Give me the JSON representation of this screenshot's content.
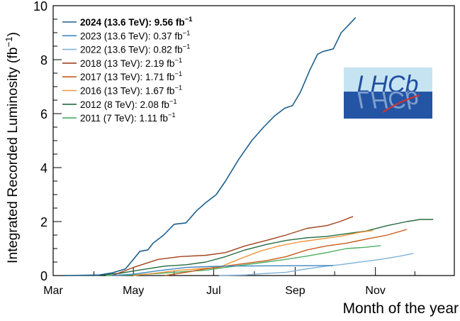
{
  "chart_data": {
    "type": "line",
    "xlabel": "Month of the year",
    "ylabel_main": "Integrated Recorded Luminosity (fb",
    "ylabel_sup": "−1",
    "ylabel_close": ")",
    "xlim": [
      "2024-03-01",
      "2024-12-31"
    ],
    "ylim": [
      0,
      10
    ],
    "x_ticks": [
      {
        "label": "Mar",
        "date": "2024-03-01"
      },
      {
        "label": "May",
        "date": "2024-05-01"
      },
      {
        "label": "Jul",
        "date": "2024-07-01"
      },
      {
        "label": "Sep",
        "date": "2024-09-01"
      },
      {
        "label": "Nov",
        "date": "2024-11-01"
      }
    ],
    "y_ticks": [
      {
        "label": "0",
        "value": 0
      },
      {
        "label": "2",
        "value": 2
      },
      {
        "label": "4",
        "value": 4
      },
      {
        "label": "6",
        "value": 6
      },
      {
        "label": "8",
        "value": 8
      },
      {
        "label": "10",
        "value": 10
      }
    ],
    "legend_position": "top-left",
    "series": [
      {
        "key": "2024",
        "name_main": "2024 (13.6 TeV): 9.56 fb",
        "name_sup": "−1",
        "bold": true,
        "color": "#1d5f8e",
        "points": [
          [
            "2024-03-10",
            0
          ],
          [
            "2024-04-05",
            0.02
          ],
          [
            "2024-04-15",
            0.1
          ],
          [
            "2024-04-25",
            0.25
          ],
          [
            "2024-05-01",
            0.6
          ],
          [
            "2024-05-06",
            0.9
          ],
          [
            "2024-05-12",
            0.95
          ],
          [
            "2024-05-16",
            1.2
          ],
          [
            "2024-05-24",
            1.5
          ],
          [
            "2024-06-01",
            1.9
          ],
          [
            "2024-06-10",
            1.95
          ],
          [
            "2024-06-18",
            2.4
          ],
          [
            "2024-06-25",
            2.7
          ],
          [
            "2024-07-03",
            3.0
          ],
          [
            "2024-07-10",
            3.5
          ],
          [
            "2024-07-20",
            4.3
          ],
          [
            "2024-07-30",
            5.0
          ],
          [
            "2024-08-08",
            5.5
          ],
          [
            "2024-08-16",
            5.9
          ],
          [
            "2024-08-24",
            6.2
          ],
          [
            "2024-08-30",
            6.3
          ],
          [
            "2024-09-05",
            6.8
          ],
          [
            "2024-09-12",
            7.6
          ],
          [
            "2024-09-18",
            8.2
          ],
          [
            "2024-09-22",
            8.3
          ],
          [
            "2024-09-30",
            8.4
          ],
          [
            "2024-10-06",
            9.0
          ],
          [
            "2024-10-12",
            9.3
          ],
          [
            "2024-10-17",
            9.56
          ]
        ]
      },
      {
        "key": "2023",
        "name_main": "2023 (13.6 TeV): 0.37 fb",
        "name_sup": "−1",
        "bold": false,
        "color": "#3b86c0",
        "points": [
          [
            "2024-04-15",
            0
          ],
          [
            "2024-05-01",
            0.05
          ],
          [
            "2024-05-20",
            0.18
          ],
          [
            "2024-06-10",
            0.3
          ],
          [
            "2024-06-25",
            0.33
          ],
          [
            "2024-07-10",
            0.35
          ],
          [
            "2024-08-15",
            0.36
          ],
          [
            "2024-09-25",
            0.37
          ],
          [
            "2024-09-30",
            0.37
          ]
        ]
      },
      {
        "key": "2022",
        "name_main": "2022 (13.6 TeV): 0.82 fb",
        "name_sup": "−1",
        "bold": false,
        "color": "#7fb2d9",
        "points": [
          [
            "2024-07-05",
            0
          ],
          [
            "2024-07-25",
            0.02
          ],
          [
            "2024-08-10",
            0.08
          ],
          [
            "2024-08-25",
            0.12
          ],
          [
            "2024-09-10",
            0.25
          ],
          [
            "2024-09-25",
            0.35
          ],
          [
            "2024-10-05",
            0.4
          ],
          [
            "2024-10-20",
            0.5
          ],
          [
            "2024-11-05",
            0.6
          ],
          [
            "2024-11-20",
            0.72
          ],
          [
            "2024-11-30",
            0.82
          ]
        ]
      },
      {
        "key": "2018",
        "name_main": "2018 (13 TeV): 2.19 fb",
        "name_sup": "−1",
        "bold": false,
        "color": "#a0421c",
        "points": [
          [
            "2024-04-15",
            0
          ],
          [
            "2024-05-01",
            0.3
          ],
          [
            "2024-05-20",
            0.6
          ],
          [
            "2024-06-05",
            0.7
          ],
          [
            "2024-06-25",
            0.75
          ],
          [
            "2024-07-10",
            0.85
          ],
          [
            "2024-07-25",
            1.1
          ],
          [
            "2024-08-10",
            1.3
          ],
          [
            "2024-08-25",
            1.5
          ],
          [
            "2024-09-10",
            1.75
          ],
          [
            "2024-09-25",
            1.85
          ],
          [
            "2024-10-05",
            2.0
          ],
          [
            "2024-10-15",
            2.19
          ]
        ]
      },
      {
        "key": "2017",
        "name_main": "2017 (13 TeV): 1.71 fb",
        "name_sup": "−1",
        "bold": false,
        "color": "#c85a19",
        "points": [
          [
            "2024-05-25",
            0
          ],
          [
            "2024-06-10",
            0.12
          ],
          [
            "2024-06-25",
            0.25
          ],
          [
            "2024-07-10",
            0.35
          ],
          [
            "2024-07-25",
            0.45
          ],
          [
            "2024-08-10",
            0.55
          ],
          [
            "2024-08-25",
            0.7
          ],
          [
            "2024-09-10",
            0.95
          ],
          [
            "2024-09-25",
            1.1
          ],
          [
            "2024-10-10",
            1.2
          ],
          [
            "2024-10-25",
            1.35
          ],
          [
            "2024-11-10",
            1.5
          ],
          [
            "2024-11-25",
            1.71
          ]
        ]
      },
      {
        "key": "2016",
        "name_main": "2016 (13 TeV): 1.67 fb",
        "name_sup": "−1",
        "bold": false,
        "color": "#f0953a",
        "points": [
          [
            "2024-05-01",
            0
          ],
          [
            "2024-05-20",
            0.1
          ],
          [
            "2024-06-05",
            0.2
          ],
          [
            "2024-06-20",
            0.25
          ],
          [
            "2024-07-05",
            0.3
          ],
          [
            "2024-07-20",
            0.6
          ],
          [
            "2024-08-05",
            0.9
          ],
          [
            "2024-08-20",
            1.1
          ],
          [
            "2024-09-05",
            1.25
          ],
          [
            "2024-09-20",
            1.35
          ],
          [
            "2024-10-05",
            1.45
          ],
          [
            "2024-10-20",
            1.6
          ],
          [
            "2024-10-30",
            1.67
          ]
        ]
      },
      {
        "key": "2012",
        "name_main": "2012 (8 TeV): 2.08 fb",
        "name_sup": "−1",
        "bold": false,
        "color": "#246b3f",
        "points": [
          [
            "2024-04-01",
            0
          ],
          [
            "2024-04-20",
            0.08
          ],
          [
            "2024-05-05",
            0.2
          ],
          [
            "2024-05-25",
            0.35
          ],
          [
            "2024-06-10",
            0.4
          ],
          [
            "2024-06-25",
            0.5
          ],
          [
            "2024-07-10",
            0.7
          ],
          [
            "2024-07-25",
            0.95
          ],
          [
            "2024-08-10",
            1.15
          ],
          [
            "2024-08-25",
            1.3
          ],
          [
            "2024-09-10",
            1.4
          ],
          [
            "2024-09-25",
            1.45
          ],
          [
            "2024-10-10",
            1.55
          ],
          [
            "2024-10-25",
            1.65
          ],
          [
            "2024-11-10",
            1.85
          ],
          [
            "2024-11-25",
            2.0
          ],
          [
            "2024-12-05",
            2.08
          ],
          [
            "2024-12-15",
            2.08
          ]
        ]
      },
      {
        "key": "2011",
        "name_main": "2011 (7 TeV): 1.11 fb",
        "name_sup": "−1",
        "bold": false,
        "color": "#4caf62",
        "points": [
          [
            "2024-04-10",
            0
          ],
          [
            "2024-05-01",
            0.02
          ],
          [
            "2024-05-20",
            0.08
          ],
          [
            "2024-06-10",
            0.15
          ],
          [
            "2024-06-25",
            0.2
          ],
          [
            "2024-07-10",
            0.3
          ],
          [
            "2024-07-25",
            0.4
          ],
          [
            "2024-08-10",
            0.5
          ],
          [
            "2024-08-25",
            0.6
          ],
          [
            "2024-09-10",
            0.72
          ],
          [
            "2024-09-25",
            0.85
          ],
          [
            "2024-10-10",
            1.0
          ],
          [
            "2024-10-25",
            1.05
          ],
          [
            "2024-11-05",
            1.11
          ]
        ]
      }
    ]
  },
  "logo": {
    "text": "LHCb",
    "top_color": "#c6e3f2",
    "bottom_color": "#2455a5",
    "text_color": "#1f4fa0",
    "swoosh_color": "#d6322b"
  }
}
